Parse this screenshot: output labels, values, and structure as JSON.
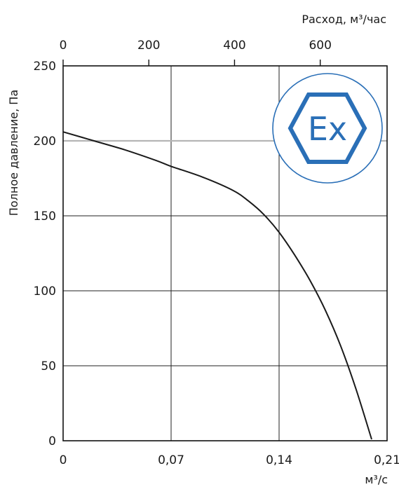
{
  "chart_data": {
    "type": "line",
    "title": "",
    "xlabel": "м³/с",
    "ylabel": "Полное давление, Па",
    "x_top_label": "Расход, м³/час",
    "xlim": [
      0,
      0.21
    ],
    "ylim": [
      0,
      250
    ],
    "x_ticks": [
      {
        "value": 0,
        "label": "0"
      },
      {
        "value": 0.07,
        "label": "0,07"
      },
      {
        "value": 0.14,
        "label": "0,14"
      },
      {
        "value": 0.21,
        "label": "0,21"
      }
    ],
    "x_top_ticks": [
      {
        "value": 0,
        "label": "0"
      },
      {
        "value": 200,
        "label": "200"
      },
      {
        "value": 400,
        "label": "400"
      },
      {
        "value": 600,
        "label": "600"
      }
    ],
    "x_top_lim": [
      0,
      756
    ],
    "y_ticks": [
      {
        "value": 0,
        "label": "0"
      },
      {
        "value": 50,
        "label": "50"
      },
      {
        "value": 100,
        "label": "100"
      },
      {
        "value": 150,
        "label": "150"
      },
      {
        "value": 200,
        "label": "200"
      },
      {
        "value": 250,
        "label": "250"
      }
    ],
    "grid": true,
    "highlight_line_y": 200,
    "series": [
      {
        "x": [
          0,
          0.02,
          0.04,
          0.06,
          0.07,
          0.09,
          0.11,
          0.12,
          0.13,
          0.14,
          0.15,
          0.16,
          0.17,
          0.18,
          0.19,
          0.2
        ],
        "values": [
          206,
          200,
          194,
          187,
          183,
          176,
          167,
          160,
          151,
          139,
          124,
          107,
          87,
          63,
          34,
          1
        ]
      }
    ],
    "colors": {
      "curve": "#1a1a1a",
      "grid": "#222222",
      "highlight_line": "#b5b5b5",
      "badge": "#2a6fb7"
    }
  },
  "badge": {
    "icon": "ex-atex-icon",
    "text": "Ex"
  }
}
